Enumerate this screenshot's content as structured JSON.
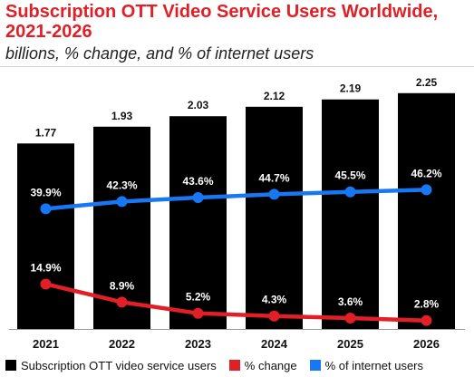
{
  "chart_data": {
    "type": "bar",
    "title": "Subscription OTT Video Service Users Worldwide, 2021-2026",
    "subtitle": "billions, % change, and % of internet users",
    "categories": [
      "2021",
      "2022",
      "2023",
      "2024",
      "2025",
      "2026"
    ],
    "series": [
      {
        "name": "Subscription OTT video service users",
        "type": "bar",
        "values": [
          1.77,
          1.93,
          2.03,
          2.12,
          2.19,
          2.25
        ],
        "labels": [
          "1.77",
          "1.93",
          "2.03",
          "2.12",
          "2.19",
          "2.25"
        ],
        "color": "#000000"
      },
      {
        "name": "% change",
        "type": "line",
        "values": [
          14.9,
          8.9,
          5.2,
          4.3,
          3.6,
          2.8
        ],
        "labels": [
          "14.9%",
          "8.9%",
          "5.2%",
          "4.3%",
          "3.6%",
          "2.8%"
        ],
        "color": "#e01f26"
      },
      {
        "name": "% of internet users",
        "type": "line",
        "values": [
          39.9,
          42.3,
          43.6,
          44.7,
          45.5,
          46.2
        ],
        "labels": [
          "39.9%",
          "42.3%",
          "43.6%",
          "44.7%",
          "45.5%",
          "46.2%"
        ],
        "color": "#1878f3"
      }
    ],
    "ylim": [
      0,
      2.3
    ],
    "percent_ylim": [
      0,
      80
    ],
    "grid": false,
    "legend_position": "bottom"
  }
}
